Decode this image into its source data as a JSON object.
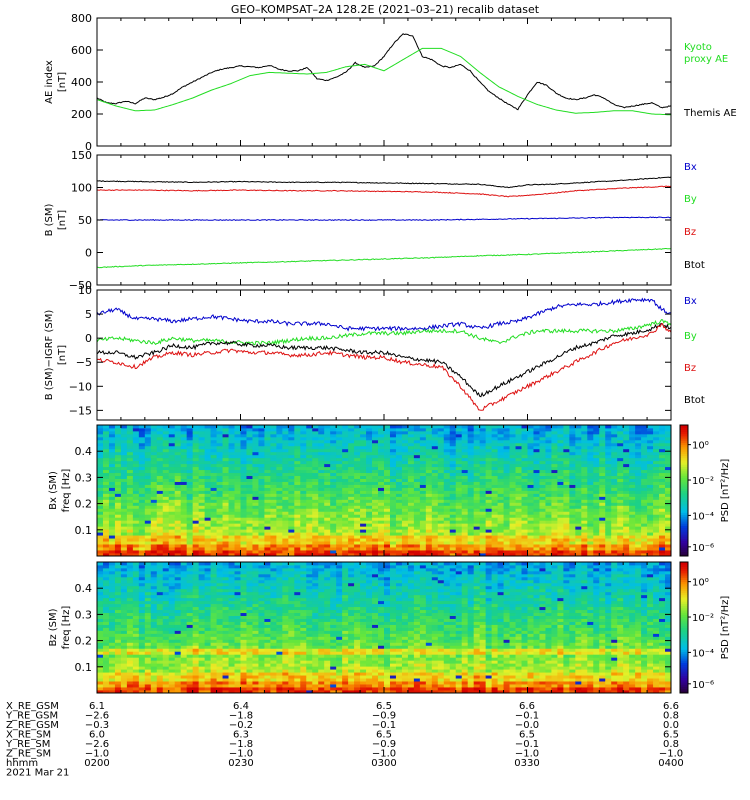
{
  "title": "GEO–KOMPSAT–2A 128.2E (2021–03–21) recalib dataset",
  "colors": {
    "black": "#000000",
    "green": "#22dd22",
    "red": "#dd1111",
    "blue": "#0000cc"
  },
  "chart_data": [
    {
      "type": "line",
      "name": "ae",
      "ylabel": [
        "AE index",
        "[nT]"
      ],
      "ylim": [
        0,
        800
      ],
      "yticks": [
        0,
        200,
        400,
        600,
        800
      ],
      "xlim": [
        0,
        120
      ],
      "legend": [
        {
          "text": "Kyoto",
          "color": "#22dd22"
        },
        {
          "text": "proxy AE",
          "color": "#22dd22"
        },
        {
          "text": "Themis AE",
          "color": "#000000"
        }
      ],
      "series": [
        {
          "name": "Themis AE",
          "color": "#000000",
          "x": [
            0,
            2,
            4,
            6,
            8,
            10,
            12,
            14,
            16,
            18,
            20,
            22,
            24,
            26,
            28,
            30,
            32,
            34,
            36,
            38,
            40,
            42,
            44,
            46,
            48,
            50,
            52,
            54,
            56,
            58,
            60,
            62,
            64,
            66,
            68,
            70,
            72,
            74,
            76,
            78,
            80,
            82,
            84,
            86,
            88,
            90,
            92,
            94,
            96,
            98,
            100,
            102,
            104,
            106,
            108,
            110,
            112,
            114,
            116,
            118,
            120
          ],
          "y": [
            300,
            270,
            265,
            280,
            265,
            300,
            290,
            305,
            330,
            370,
            400,
            430,
            460,
            480,
            490,
            500,
            495,
            490,
            505,
            480,
            470,
            470,
            490,
            420,
            410,
            430,
            460,
            520,
            490,
            500,
            560,
            640,
            700,
            690,
            560,
            540,
            500,
            490,
            510,
            470,
            400,
            340,
            300,
            260,
            230,
            320,
            400,
            380,
            330,
            300,
            290,
            300,
            320,
            300,
            260,
            240,
            250,
            260,
            270,
            240,
            250
          ]
        },
        {
          "name": "Kyoto proxy AE",
          "color": "#22dd22",
          "x": [
            0,
            4,
            8,
            12,
            16,
            20,
            24,
            28,
            32,
            36,
            40,
            44,
            48,
            52,
            56,
            60,
            64,
            68,
            72,
            76,
            80,
            84,
            88,
            92,
            96,
            100,
            104,
            108,
            112,
            116,
            120
          ],
          "y": [
            290,
            250,
            220,
            225,
            260,
            300,
            350,
            390,
            440,
            460,
            455,
            450,
            460,
            495,
            510,
            470,
            540,
            610,
            610,
            560,
            460,
            370,
            310,
            260,
            225,
            205,
            210,
            220,
            220,
            200,
            195
          ]
        }
      ]
    },
    {
      "type": "line",
      "name": "bsm",
      "ylabel": [
        "B (SM)",
        "[nT]"
      ],
      "ylim": [
        -50,
        150
      ],
      "yticks": [
        -50,
        0,
        50,
        100,
        150
      ],
      "xlim": [
        0,
        120
      ],
      "legend": [
        {
          "text": "Bx",
          "color": "#0000cc"
        },
        {
          "text": "By",
          "color": "#22dd22"
        },
        {
          "text": "Bz",
          "color": "#dd1111"
        },
        {
          "text": "Btot",
          "color": "#000000"
        }
      ],
      "series": [
        {
          "name": "Btot",
          "color": "#000000",
          "x": [
            0,
            10,
            20,
            30,
            40,
            50,
            60,
            70,
            80,
            86,
            90,
            95,
            100,
            110,
            120
          ],
          "y": [
            110,
            109,
            108,
            109,
            108,
            108,
            107,
            106,
            105,
            100,
            104,
            105,
            107,
            111,
            116
          ]
        },
        {
          "name": "Bz",
          "color": "#dd1111",
          "x": [
            0,
            10,
            20,
            30,
            40,
            50,
            60,
            70,
            80,
            86,
            90,
            95,
            100,
            110,
            120
          ],
          "y": [
            96,
            96,
            95,
            96,
            95,
            95,
            94,
            93,
            90,
            86,
            88,
            91,
            95,
            99,
            102
          ]
        },
        {
          "name": "Bx",
          "color": "#0000cc",
          "x": [
            0,
            10,
            20,
            30,
            40,
            50,
            60,
            70,
            80,
            90,
            100,
            110,
            120
          ],
          "y": [
            50,
            50,
            50,
            50,
            50,
            50,
            50,
            50,
            51,
            52,
            53,
            54,
            54
          ]
        },
        {
          "name": "By",
          "color": "#22dd22",
          "x": [
            0,
            10,
            20,
            30,
            40,
            50,
            60,
            70,
            80,
            90,
            100,
            110,
            120
          ],
          "y": [
            -23,
            -20,
            -18,
            -16,
            -14,
            -12,
            -10,
            -8,
            -5,
            -3,
            0,
            3,
            6
          ]
        }
      ]
    },
    {
      "type": "line",
      "name": "bdiff",
      "ylabel": [
        "B (SM)−IGRF (SM)",
        "[nT]"
      ],
      "ylim": [
        -17,
        10
      ],
      "yticks": [
        -15,
        -10,
        -5,
        0,
        5,
        10
      ],
      "xlim": [
        0,
        120
      ],
      "legend": [
        {
          "text": "Bx",
          "color": "#0000cc"
        },
        {
          "text": "By",
          "color": "#22dd22"
        },
        {
          "text": "Bz",
          "color": "#dd1111"
        },
        {
          "text": "Btot",
          "color": "#000000"
        }
      ],
      "series": [
        {
          "name": "Bx",
          "color": "#0000cc",
          "x": [
            0,
            4,
            8,
            12,
            16,
            20,
            24,
            28,
            32,
            36,
            40,
            44,
            48,
            52,
            56,
            60,
            64,
            68,
            72,
            76,
            80,
            84,
            88,
            92,
            96,
            100,
            104,
            108,
            112,
            116,
            118,
            120
          ],
          "y": [
            5,
            6,
            4,
            4,
            3.5,
            4,
            4.5,
            4,
            3.5,
            3.5,
            3,
            3,
            3,
            2,
            2,
            2,
            2,
            2,
            2.5,
            3,
            2,
            3,
            3.5,
            5,
            6.5,
            7,
            7,
            7.5,
            8,
            8,
            6,
            5
          ]
        },
        {
          "name": "By",
          "color": "#22dd22",
          "x": [
            0,
            4,
            8,
            12,
            16,
            20,
            24,
            28,
            32,
            36,
            40,
            44,
            48,
            52,
            56,
            60,
            64,
            68,
            72,
            76,
            80,
            84,
            88,
            92,
            96,
            100,
            104,
            108,
            112,
            116,
            118,
            120
          ],
          "y": [
            -0.5,
            0,
            -0.5,
            -1,
            0,
            -0.5,
            -0.5,
            -0.8,
            -1,
            -1,
            -0.5,
            0,
            0,
            0.5,
            1,
            1,
            1,
            1.5,
            1.5,
            1.5,
            0,
            -1,
            0.5,
            1.5,
            1.5,
            1.5,
            1.5,
            1.5,
            2,
            3,
            3.5,
            3
          ]
        },
        {
          "name": "Btot",
          "color": "#000000",
          "x": [
            0,
            4,
            8,
            12,
            16,
            20,
            24,
            28,
            32,
            36,
            40,
            44,
            48,
            52,
            56,
            60,
            64,
            68,
            72,
            76,
            80,
            84,
            88,
            92,
            96,
            100,
            104,
            108,
            112,
            116,
            118,
            120
          ],
          "y": [
            -3,
            -3,
            -4,
            -3,
            -1.5,
            -2,
            -1,
            -1,
            -1.5,
            -1.5,
            -2,
            -2,
            -2,
            -2.5,
            -3,
            -3,
            -4,
            -4.5,
            -5,
            -8,
            -12,
            -10,
            -8,
            -6,
            -4,
            -2,
            -1,
            0.5,
            1,
            2,
            3,
            2
          ]
        },
        {
          "name": "Bz",
          "color": "#dd1111",
          "x": [
            0,
            4,
            8,
            12,
            16,
            20,
            24,
            28,
            32,
            36,
            40,
            44,
            48,
            52,
            56,
            60,
            64,
            68,
            72,
            76,
            80,
            84,
            88,
            92,
            96,
            100,
            104,
            108,
            112,
            116,
            118,
            120
          ],
          "y": [
            -4.5,
            -5,
            -6,
            -4,
            -3,
            -3.5,
            -3,
            -2.5,
            -3,
            -3,
            -3.5,
            -3.5,
            -3,
            -3.5,
            -4,
            -4,
            -5,
            -5.5,
            -6,
            -10,
            -15,
            -13,
            -11,
            -9,
            -7,
            -5,
            -3,
            -1,
            0,
            1,
            3,
            1
          ]
        }
      ]
    },
    {
      "type": "heatmap",
      "name": "spec-bx",
      "ylabel": [
        "Bx (SM)",
        "freq [Hz]"
      ],
      "ylim": [
        0,
        0.5
      ],
      "yticks": [
        0.1,
        0.2,
        0.3,
        0.4
      ],
      "xlim": [
        0,
        120
      ],
      "colorbar": {
        "title": "PSD [nT²/Hz]",
        "labels": [
          "10⁰",
          "10⁻²",
          "10⁻⁴",
          "10⁻⁶"
        ]
      }
    },
    {
      "type": "heatmap",
      "name": "spec-bz",
      "ylabel": [
        "Bz (SM)",
        "freq [Hz]"
      ],
      "ylim": [
        0,
        0.5
      ],
      "yticks": [
        0.1,
        0.2,
        0.3,
        0.4
      ],
      "xlim": [
        0,
        120
      ],
      "colorbar": {
        "title": "PSD [nT²/Hz]",
        "labels": [
          "10⁰",
          "10⁻²",
          "10⁻⁴",
          "10⁻⁶"
        ]
      }
    }
  ],
  "ephemeris": {
    "rows": [
      {
        "label": "X_RE_GSM",
        "values": [
          "6.1",
          "6.4",
          "6.5",
          "6.6",
          "6.6"
        ]
      },
      {
        "label": "Y_RE_GSM",
        "values": [
          "−2.6",
          "−1.8",
          "−0.9",
          "−0.1",
          "0.8"
        ]
      },
      {
        "label": "Z_RE_GSM",
        "values": [
          "−0.3",
          "−0.2",
          "−0.1",
          "−0.0",
          "0.0"
        ]
      },
      {
        "label": "X_RE_SM",
        "values": [
          "6.0",
          "6.3",
          "6.5",
          "6.5",
          "6.5"
        ]
      },
      {
        "label": "Y_RE_SM",
        "values": [
          "−2.6",
          "−1.8",
          "−0.9",
          "−0.1",
          "0.8"
        ]
      },
      {
        "label": "Z_RE_SM",
        "values": [
          "−1.0",
          "−1.0",
          "−1.0",
          "−1.0",
          "−1.0"
        ]
      },
      {
        "label": "hhmm",
        "values": [
          "0200",
          "0230",
          "0300",
          "0330",
          "0400"
        ]
      }
    ],
    "date": "2021 Mar 21"
  }
}
